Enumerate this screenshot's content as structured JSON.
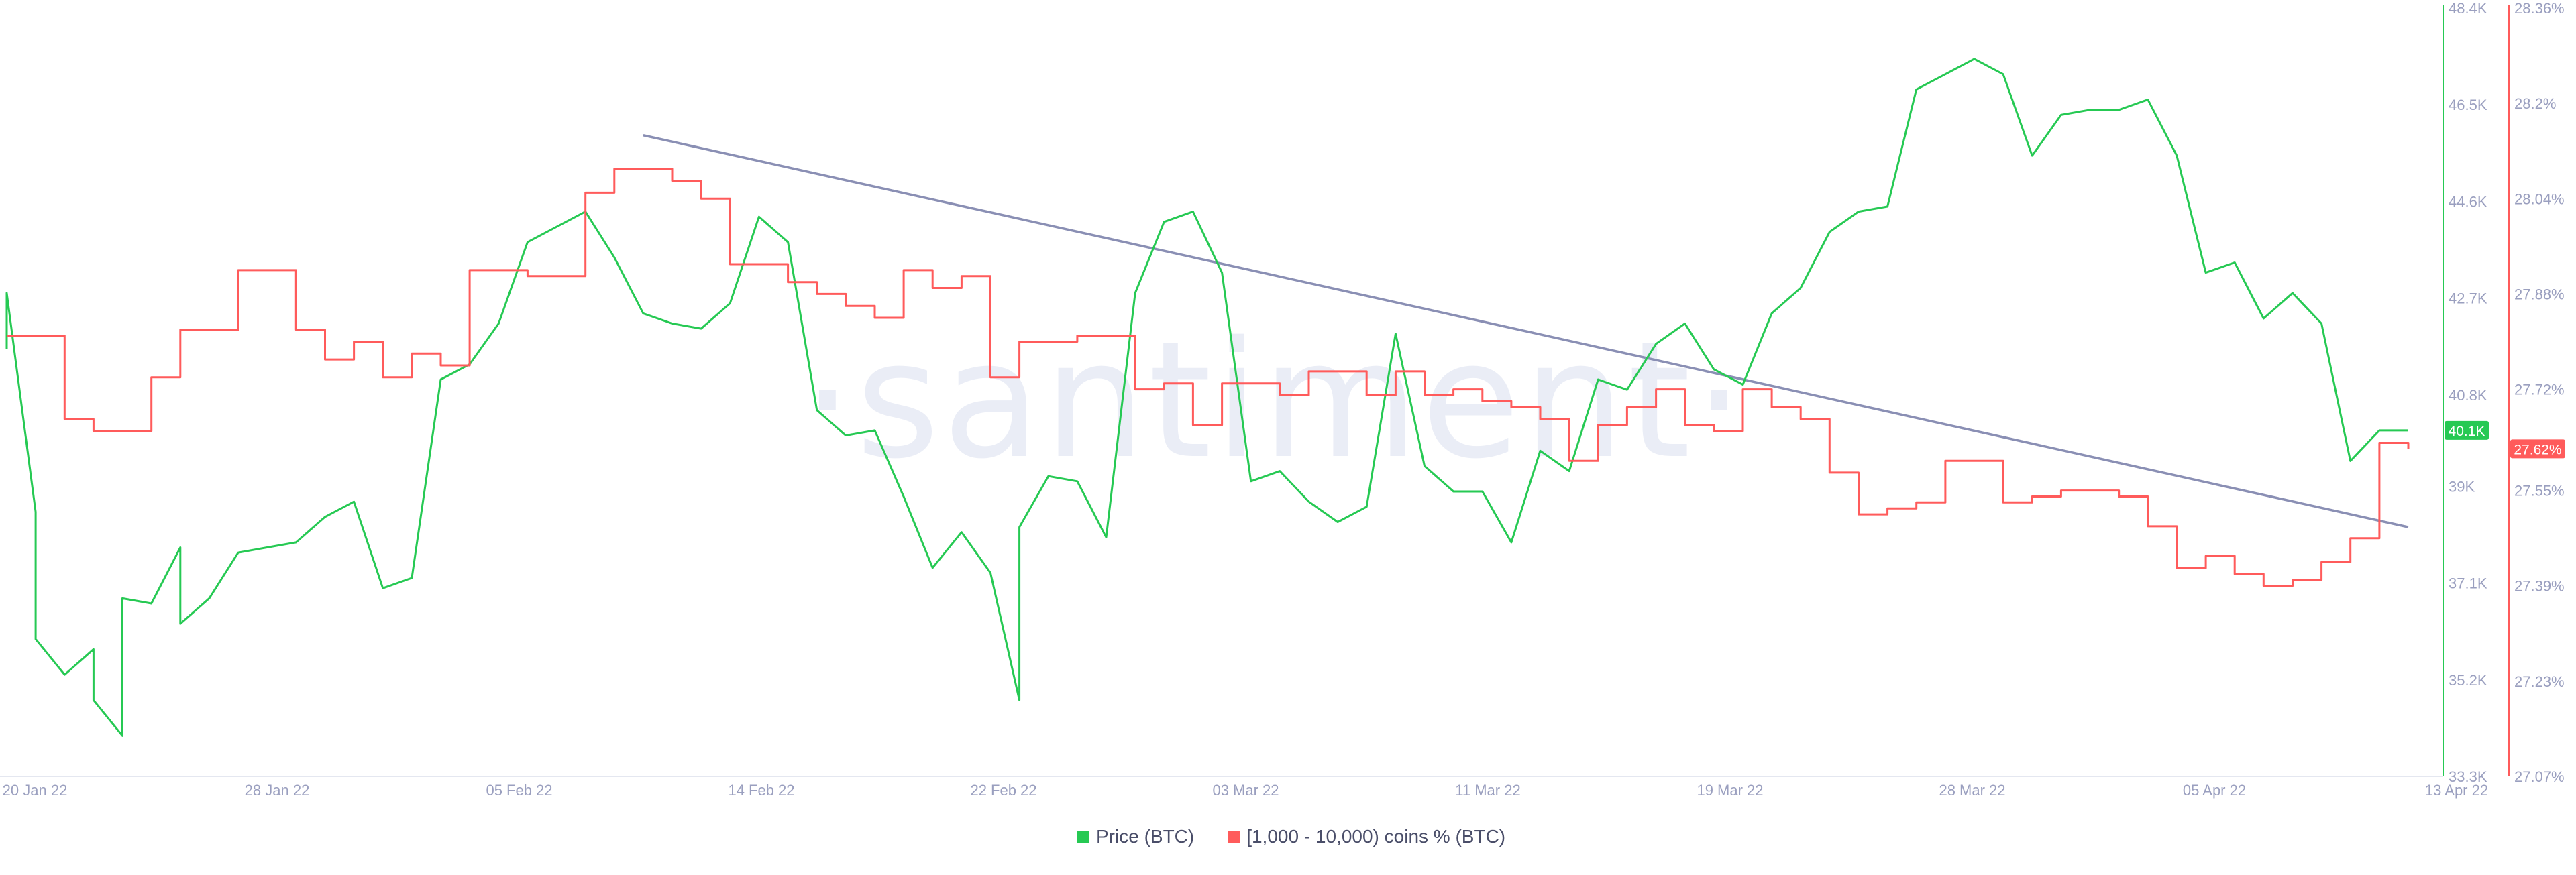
{
  "chart_data": {
    "type": "line",
    "watermark": "·santiment·",
    "x_ticks": [
      "20 Jan 22",
      "28 Jan 22",
      "05 Feb 22",
      "14 Feb 22",
      "22 Feb 22",
      "03 Mar 22",
      "11 Mar 22",
      "19 Mar 22",
      "28 Mar 22",
      "05 Apr 22",
      "13 Apr 22"
    ],
    "x_range": [
      "2022-01-20",
      "2022-04-13"
    ],
    "legend_position": "bottom-center",
    "grid": false,
    "y_axes": {
      "left": {
        "series": "Price (BTC)",
        "range": [
          33300,
          48400
        ],
        "ticks": [
          "48.4K",
          "46.5K",
          "44.6K",
          "42.7K",
          "40.8K",
          "39K",
          "37.1K",
          "35.2K",
          "33.3K"
        ],
        "tick_values": [
          48400,
          46500,
          44600,
          42700,
          40800,
          39000,
          37100,
          35200,
          33300
        ],
        "color": "#26c953"
      },
      "right": {
        "series": "[1,000 - 10,000) coins % (BTC)",
        "range": [
          27.07,
          28.36
        ],
        "ticks": [
          "28.36%",
          "28.2%",
          "28.04%",
          "27.88%",
          "27.72%",
          "27.55%",
          "27.39%",
          "27.23%",
          "27.07%"
        ],
        "tick_values": [
          28.36,
          28.2,
          28.04,
          27.88,
          27.72,
          27.55,
          27.39,
          27.23,
          27.07
        ],
        "color": "#ff5b5b"
      }
    },
    "series": [
      {
        "name": "Price (BTC)",
        "axis": "left",
        "color": "#26c953",
        "last_value_label": "40.1K",
        "points": [
          [
            "2022-01-20",
            41700
          ],
          [
            "2022-01-20",
            42800
          ],
          [
            "2022-01-21",
            38500
          ],
          [
            "2022-01-21",
            36000
          ],
          [
            "2022-01-22",
            35300
          ],
          [
            "2022-01-23",
            35800
          ],
          [
            "2022-01-23",
            34800
          ],
          [
            "2022-01-24",
            34100
          ],
          [
            "2022-01-24",
            36800
          ],
          [
            "2022-01-25",
            36700
          ],
          [
            "2022-01-26",
            37800
          ],
          [
            "2022-01-26",
            36300
          ],
          [
            "2022-01-27",
            36800
          ],
          [
            "2022-01-28",
            37700
          ],
          [
            "2022-01-29",
            37800
          ],
          [
            "2022-01-30",
            37900
          ],
          [
            "2022-01-31",
            38400
          ],
          [
            "2022-02-01",
            38700
          ],
          [
            "2022-02-02",
            37000
          ],
          [
            "2022-02-03",
            37200
          ],
          [
            "2022-02-04",
            41100
          ],
          [
            "2022-02-05",
            41400
          ],
          [
            "2022-02-06",
            42200
          ],
          [
            "2022-02-07",
            43800
          ],
          [
            "2022-02-08",
            44100
          ],
          [
            "2022-02-09",
            44400
          ],
          [
            "2022-02-10",
            43500
          ],
          [
            "2022-02-11",
            42400
          ],
          [
            "2022-02-12",
            42200
          ],
          [
            "2022-02-13",
            42100
          ],
          [
            "2022-02-14",
            42600
          ],
          [
            "2022-02-15",
            44300
          ],
          [
            "2022-02-16",
            43800
          ],
          [
            "2022-02-17",
            40500
          ],
          [
            "2022-02-18",
            40000
          ],
          [
            "2022-02-19",
            40100
          ],
          [
            "2022-02-20",
            38800
          ],
          [
            "2022-02-21",
            37400
          ],
          [
            "2022-02-22",
            38100
          ],
          [
            "2022-02-23",
            37300
          ],
          [
            "2022-02-24",
            34800
          ],
          [
            "2022-02-24",
            38200
          ],
          [
            "2022-02-25",
            39200
          ],
          [
            "2022-02-26",
            39100
          ],
          [
            "2022-02-27",
            38000
          ],
          [
            "2022-02-28",
            42800
          ],
          [
            "2022-03-01",
            44200
          ],
          [
            "2022-03-02",
            44400
          ],
          [
            "2022-03-03",
            43200
          ],
          [
            "2022-03-04",
            39100
          ],
          [
            "2022-03-05",
            39300
          ],
          [
            "2022-03-06",
            38700
          ],
          [
            "2022-03-07",
            38300
          ],
          [
            "2022-03-08",
            38600
          ],
          [
            "2022-03-09",
            42000
          ],
          [
            "2022-03-10",
            39400
          ],
          [
            "2022-03-11",
            38900
          ],
          [
            "2022-03-12",
            38900
          ],
          [
            "2022-03-13",
            37900
          ],
          [
            "2022-03-14",
            39700
          ],
          [
            "2022-03-15",
            39300
          ],
          [
            "2022-03-16",
            41100
          ],
          [
            "2022-03-17",
            40900
          ],
          [
            "2022-03-18",
            41800
          ],
          [
            "2022-03-19",
            42200
          ],
          [
            "2022-03-20",
            41300
          ],
          [
            "2022-03-21",
            41000
          ],
          [
            "2022-03-22",
            42400
          ],
          [
            "2022-03-23",
            42900
          ],
          [
            "2022-03-24",
            44000
          ],
          [
            "2022-03-25",
            44400
          ],
          [
            "2022-03-26",
            44500
          ],
          [
            "2022-03-27",
            46800
          ],
          [
            "2022-03-28",
            47100
          ],
          [
            "2022-03-29",
            47400
          ],
          [
            "2022-03-30",
            47100
          ],
          [
            "2022-03-31",
            45500
          ],
          [
            "2022-04-01",
            46300
          ],
          [
            "2022-04-02",
            46400
          ],
          [
            "2022-04-03",
            46400
          ],
          [
            "2022-04-04",
            46600
          ],
          [
            "2022-04-05",
            45500
          ],
          [
            "2022-04-06",
            43200
          ],
          [
            "2022-04-07",
            43400
          ],
          [
            "2022-04-08",
            42300
          ],
          [
            "2022-04-09",
            42800
          ],
          [
            "2022-04-10",
            42200
          ],
          [
            "2022-04-11",
            39500
          ],
          [
            "2022-04-12",
            40100
          ],
          [
            "2022-04-13",
            40100
          ]
        ]
      },
      {
        "name": "[1,000 - 10,000) coins % (BTC)",
        "axis": "right",
        "color": "#ff5b5b",
        "step": true,
        "last_value_label": "27.62%",
        "points": [
          [
            "2022-01-20",
            27.81
          ],
          [
            "2022-01-22",
            27.67
          ],
          [
            "2022-01-23",
            27.65
          ],
          [
            "2022-01-25",
            27.74
          ],
          [
            "2022-01-26",
            27.82
          ],
          [
            "2022-01-28",
            27.92
          ],
          [
            "2022-01-30",
            27.82
          ],
          [
            "2022-01-31",
            27.77
          ],
          [
            "2022-02-01",
            27.8
          ],
          [
            "2022-02-02",
            27.74
          ],
          [
            "2022-02-03",
            27.78
          ],
          [
            "2022-02-04",
            27.76
          ],
          [
            "2022-02-05",
            27.92
          ],
          [
            "2022-02-07",
            27.91
          ],
          [
            "2022-02-09",
            28.05
          ],
          [
            "2022-02-10",
            28.09
          ],
          [
            "2022-02-12",
            28.07
          ],
          [
            "2022-02-13",
            28.04
          ],
          [
            "2022-02-14",
            27.93
          ],
          [
            "2022-02-16",
            27.9
          ],
          [
            "2022-02-17",
            27.88
          ],
          [
            "2022-02-18",
            27.86
          ],
          [
            "2022-02-19",
            27.84
          ],
          [
            "2022-02-20",
            27.92
          ],
          [
            "2022-02-21",
            27.89
          ],
          [
            "2022-02-22",
            27.91
          ],
          [
            "2022-02-23",
            27.74
          ],
          [
            "2022-02-24",
            27.8
          ],
          [
            "2022-02-26",
            27.81
          ],
          [
            "2022-02-28",
            27.72
          ],
          [
            "2022-03-01",
            27.73
          ],
          [
            "2022-03-02",
            27.66
          ],
          [
            "2022-03-03",
            27.73
          ],
          [
            "2022-03-05",
            27.71
          ],
          [
            "2022-03-06",
            27.75
          ],
          [
            "2022-03-08",
            27.71
          ],
          [
            "2022-03-09",
            27.75
          ],
          [
            "2022-03-10",
            27.71
          ],
          [
            "2022-03-11",
            27.72
          ],
          [
            "2022-03-12",
            27.7
          ],
          [
            "2022-03-13",
            27.69
          ],
          [
            "2022-03-14",
            27.67
          ],
          [
            "2022-03-15",
            27.6
          ],
          [
            "2022-03-16",
            27.66
          ],
          [
            "2022-03-17",
            27.69
          ],
          [
            "2022-03-18",
            27.72
          ],
          [
            "2022-03-19",
            27.66
          ],
          [
            "2022-03-20",
            27.65
          ],
          [
            "2022-03-21",
            27.72
          ],
          [
            "2022-03-22",
            27.69
          ],
          [
            "2022-03-23",
            27.67
          ],
          [
            "2022-03-24",
            27.58
          ],
          [
            "2022-03-25",
            27.51
          ],
          [
            "2022-03-26",
            27.52
          ],
          [
            "2022-03-27",
            27.53
          ],
          [
            "2022-03-28",
            27.6
          ],
          [
            "2022-03-30",
            27.53
          ],
          [
            "2022-03-31",
            27.54
          ],
          [
            "2022-04-01",
            27.55
          ],
          [
            "2022-04-03",
            27.54
          ],
          [
            "2022-04-04",
            27.49
          ],
          [
            "2022-04-05",
            27.42
          ],
          [
            "2022-04-06",
            27.44
          ],
          [
            "2022-04-07",
            27.41
          ],
          [
            "2022-04-08",
            27.39
          ],
          [
            "2022-04-09",
            27.4
          ],
          [
            "2022-04-10",
            27.43
          ],
          [
            "2022-04-11",
            27.47
          ],
          [
            "2022-04-12",
            27.63
          ],
          [
            "2022-04-13",
            27.62
          ]
        ]
      }
    ],
    "annotations": [
      {
        "type": "trendline",
        "color": "#8a8fb4",
        "from": [
          "2022-02-11",
          45900
        ],
        "to": [
          "2022-04-13",
          38200
        ]
      }
    ],
    "legend": [
      {
        "label": "Price (BTC)",
        "color": "#26c953"
      },
      {
        "label": "[1,000 - 10,000) coins % (BTC)",
        "color": "#ff5b5b"
      }
    ]
  }
}
